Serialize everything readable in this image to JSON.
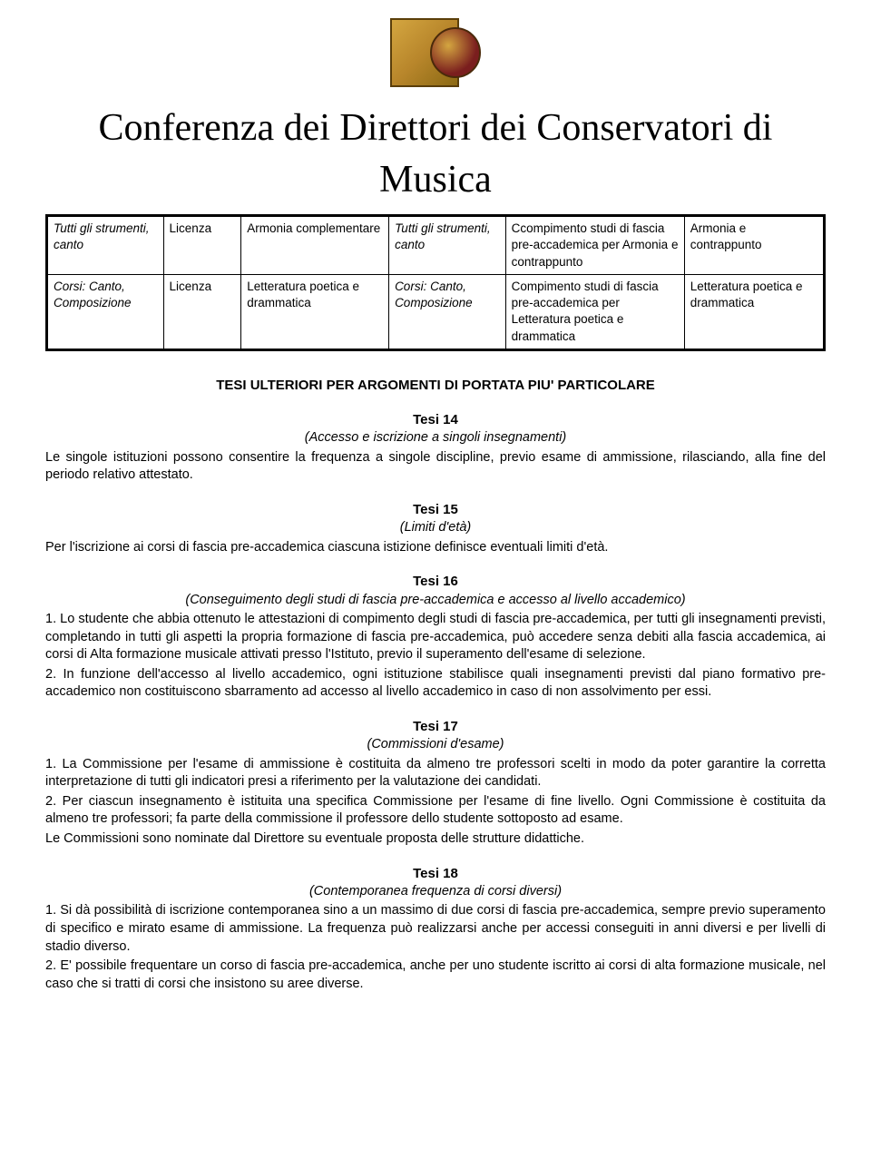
{
  "heading": "Conferenza dei Direttori dei Conservatori di Musica",
  "table": {
    "rows": [
      {
        "c1": "Tutti gli strumenti, canto",
        "c2": "Licenza",
        "c3": "Armonia complementare",
        "c4": "Tutti gli strumenti, canto",
        "c5": "Ccompimento studi di fascia pre-accademica per Armonia e contrappunto",
        "c6": "Armonia e contrappunto"
      },
      {
        "c1": "Corsi: Canto, Composizione",
        "c2": "Licenza",
        "c3": "Letteratura poetica e drammatica",
        "c4": "Corsi: Canto, Composizione",
        "c5": "Compimento studi di fascia pre-accademica per Letteratura poetica e drammatica",
        "c6": "Letteratura poetica e drammatica"
      }
    ]
  },
  "section_title": "TESI ULTERIORI PER ARGOMENTI DI PORTATA PIU' PARTICOLARE",
  "tesi": [
    {
      "title": "Tesi 14",
      "sub": "(Accesso e iscrizione a singoli insegnamenti)",
      "body": [
        "Le singole istituzioni possono consentire la frequenza a singole discipline, previo esame di ammissione, rilasciando, alla fine del periodo relativo attestato."
      ]
    },
    {
      "title": "Tesi 15",
      "sub": "(Limiti d'età)",
      "body": [
        "Per l'iscrizione ai corsi di fascia pre-accademica ciascuna istizione definisce eventuali limiti d'età."
      ]
    },
    {
      "title": "Tesi 16",
      "sub": "(Conseguimento degli studi di fascia pre-accademica e accesso al livello accademico)",
      "body": [
        "1.  Lo studente che abbia ottenuto le attestazioni di compimento degli studi di fascia pre-accademica, per tutti gli insegnamenti previsti, completando in tutti gli aspetti la propria formazione di fascia pre-accademica, può accedere senza debiti alla fascia accademica, ai corsi di Alta formazione musicale attivati presso l'Istituto, previo il superamento dell'esame di selezione.",
        "2.  In funzione dell'accesso al livello accademico, ogni istituzione stabilisce quali insegnamenti previsti dal piano formativo pre-accademico non costituiscono sbarramento ad accesso al livello accademico in caso di non assolvimento per essi."
      ]
    },
    {
      "title": "Tesi 17",
      "sub": "(Commissioni d'esame)",
      "body": [
        "1.  La Commissione per l'esame di ammissione è costituita da almeno tre professori scelti in modo da poter garantire la corretta interpretazione di tutti gli indicatori presi a riferimento per la valutazione dei candidati.",
        "2.  Per ciascun insegnamento è istituita una specifica Commissione per l'esame di fine livello. Ogni Commissione è costituita da almeno tre professori; fa parte della commissione il professore dello studente sottoposto ad esame.",
        "Le Commissioni sono nominate dal Direttore su eventuale proposta delle strutture didattiche."
      ]
    },
    {
      "title": "Tesi 18",
      "sub": "(Contemporanea frequenza di corsi diversi)",
      "body": [
        "1.  Si dà possibilità di iscrizione contemporanea sino a un massimo di due corsi di fascia pre-accademica, sempre previo superamento di specifico e mirato esame di ammissione. La frequenza può realizzarsi anche per accessi conseguiti in anni diversi e per livelli di stadio diverso.",
        "2.  E' possibile frequentare un corso di fascia pre-accademica, anche per uno studente iscritto ai corsi di alta formazione musicale, nel caso che si tratti di corsi che insistono su aree diverse."
      ]
    }
  ]
}
